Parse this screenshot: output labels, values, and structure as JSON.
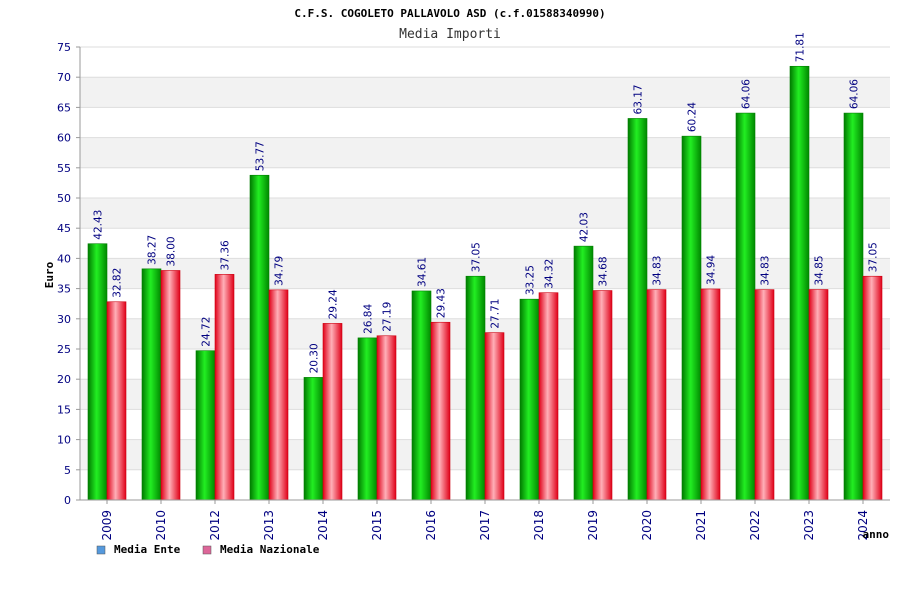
{
  "colors": {
    "series1": "#00c000",
    "series2": "#e82030",
    "legend1": "#5599dd",
    "legend2": "#dd6699",
    "band": "#f2f2f2",
    "axis_text": "#000080"
  },
  "chart_data": {
    "type": "bar",
    "title": "C.F.S. COGOLETO PALLAVOLO ASD (c.f.01588340990)",
    "subtitle": "Media Importi",
    "xlabel": "anno",
    "ylabel": "Euro",
    "ylim": [
      0,
      75
    ],
    "yticks": [
      0,
      5,
      10,
      15,
      20,
      25,
      30,
      35,
      40,
      45,
      50,
      55,
      60,
      65,
      70,
      75
    ],
    "legend_position": "bottom-left",
    "categories": [
      "2009",
      "2010",
      "2012",
      "2013",
      "2014",
      "2015",
      "2016",
      "2017",
      "2018",
      "2019",
      "2020",
      "2021",
      "2022",
      "2023",
      "2024"
    ],
    "series": [
      {
        "name": "Media Ente",
        "values": [
          42.43,
          38.27,
          24.72,
          53.77,
          20.3,
          26.84,
          34.61,
          37.05,
          33.25,
          42.03,
          63.17,
          60.24,
          64.06,
          71.81,
          64.06
        ],
        "labels": [
          "42.43",
          "38.27",
          "24.72",
          "53.77",
          "20.30",
          "26.84",
          "34.61",
          "37.05",
          "33.25",
          "42.03",
          "63.17",
          "60.24",
          "64.06",
          "71.81",
          "64.06"
        ]
      },
      {
        "name": "Media Nazionale",
        "values": [
          32.82,
          38.0,
          37.36,
          34.79,
          29.24,
          27.19,
          29.43,
          27.71,
          34.32,
          34.68,
          34.83,
          34.94,
          34.83,
          34.85,
          37.05
        ],
        "labels": [
          "32.82",
          "38.00",
          "37.36",
          "34.79",
          "29.24",
          "27.19",
          "29.43",
          "27.71",
          "34.32",
          "34.68",
          "34.83",
          "34.94",
          "34.83",
          "34.85",
          "37.05"
        ]
      }
    ]
  }
}
